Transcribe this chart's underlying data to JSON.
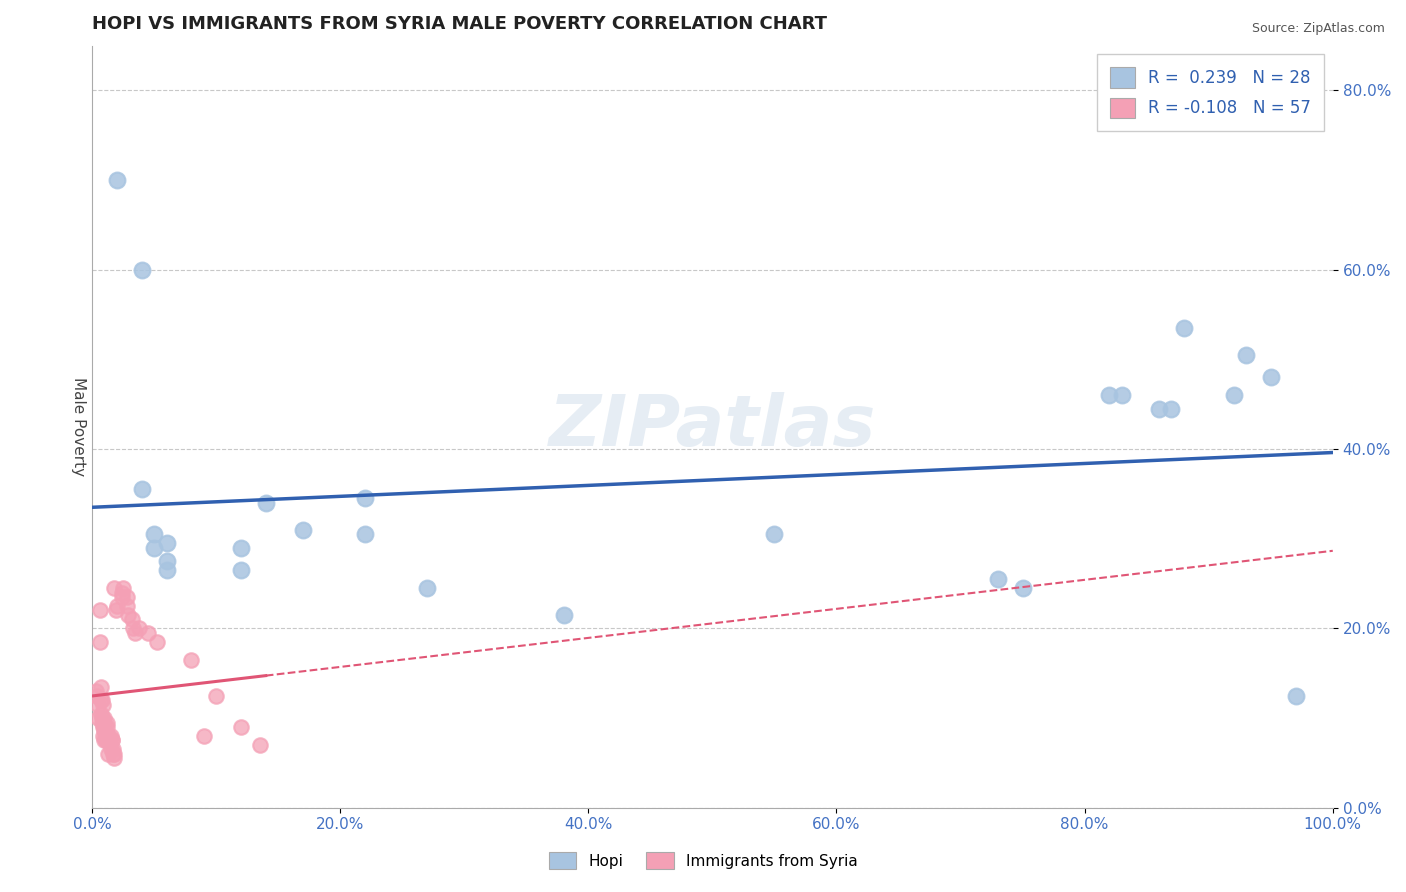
{
  "title": "HOPI VS IMMIGRANTS FROM SYRIA MALE POVERTY CORRELATION CHART",
  "source": "Source: ZipAtlas.com",
  "tick_color": "#4472c4",
  "ylabel": "Male Poverty",
  "xlim": [
    0.0,
    1.0
  ],
  "ylim": [
    0.0,
    0.85
  ],
  "yticks": [
    0.0,
    0.2,
    0.4,
    0.6,
    0.8
  ],
  "xticks": [
    0.0,
    0.2,
    0.4,
    0.6,
    0.8,
    1.0
  ],
  "ytick_labels": [
    "0.0%",
    "20.0%",
    "40.0%",
    "60.0%",
    "80.0%"
  ],
  "xtick_labels": [
    "0.0%",
    "20.0%",
    "40.0%",
    "60.0%",
    "80.0%",
    "100.0%"
  ],
  "legend_r_hopi": "R =  0.239",
  "legend_n_hopi": "N = 28",
  "legend_r_syria": "R = -0.108",
  "legend_n_syria": "N = 57",
  "hopi_color": "#a8c4e0",
  "syria_color": "#f4a0b5",
  "hopi_line_color": "#3060b0",
  "syria_line_color": "#e05575",
  "hopi_scatter": [
    [
      0.02,
      0.7
    ],
    [
      0.04,
      0.6
    ],
    [
      0.04,
      0.355
    ],
    [
      0.05,
      0.305
    ],
    [
      0.05,
      0.29
    ],
    [
      0.06,
      0.295
    ],
    [
      0.06,
      0.275
    ],
    [
      0.06,
      0.265
    ],
    [
      0.12,
      0.29
    ],
    [
      0.12,
      0.265
    ],
    [
      0.14,
      0.34
    ],
    [
      0.17,
      0.31
    ],
    [
      0.22,
      0.345
    ],
    [
      0.22,
      0.305
    ],
    [
      0.27,
      0.245
    ],
    [
      0.38,
      0.215
    ],
    [
      0.55,
      0.305
    ],
    [
      0.73,
      0.255
    ],
    [
      0.75,
      0.245
    ],
    [
      0.82,
      0.46
    ],
    [
      0.83,
      0.46
    ],
    [
      0.86,
      0.445
    ],
    [
      0.87,
      0.445
    ],
    [
      0.88,
      0.535
    ],
    [
      0.92,
      0.46
    ],
    [
      0.93,
      0.505
    ],
    [
      0.95,
      0.48
    ],
    [
      0.97,
      0.125
    ]
  ],
  "syria_scatter": [
    [
      0.003,
      0.13
    ],
    [
      0.004,
      0.125
    ],
    [
      0.005,
      0.115
    ],
    [
      0.005,
      0.1
    ],
    [
      0.006,
      0.22
    ],
    [
      0.006,
      0.185
    ],
    [
      0.007,
      0.135
    ],
    [
      0.007,
      0.12
    ],
    [
      0.007,
      0.105
    ],
    [
      0.008,
      0.12
    ],
    [
      0.008,
      0.1
    ],
    [
      0.008,
      0.095
    ],
    [
      0.009,
      0.115
    ],
    [
      0.009,
      0.09
    ],
    [
      0.009,
      0.08
    ],
    [
      0.01,
      0.09
    ],
    [
      0.01,
      0.075
    ],
    [
      0.01,
      0.1
    ],
    [
      0.01,
      0.095
    ],
    [
      0.01,
      0.085
    ],
    [
      0.011,
      0.08
    ],
    [
      0.011,
      0.075
    ],
    [
      0.011,
      0.075
    ],
    [
      0.012,
      0.095
    ],
    [
      0.012,
      0.09
    ],
    [
      0.013,
      0.08
    ],
    [
      0.013,
      0.06
    ],
    [
      0.013,
      0.08
    ],
    [
      0.014,
      0.075
    ],
    [
      0.015,
      0.08
    ],
    [
      0.015,
      0.065
    ],
    [
      0.016,
      0.075
    ],
    [
      0.016,
      0.075
    ],
    [
      0.017,
      0.065
    ],
    [
      0.017,
      0.06
    ],
    [
      0.018,
      0.06
    ],
    [
      0.018,
      0.055
    ],
    [
      0.018,
      0.245
    ],
    [
      0.019,
      0.22
    ],
    [
      0.02,
      0.225
    ],
    [
      0.024,
      0.24
    ],
    [
      0.024,
      0.235
    ],
    [
      0.025,
      0.245
    ],
    [
      0.028,
      0.235
    ],
    [
      0.028,
      0.225
    ],
    [
      0.029,
      0.215
    ],
    [
      0.032,
      0.21
    ],
    [
      0.033,
      0.2
    ],
    [
      0.035,
      0.195
    ],
    [
      0.038,
      0.2
    ],
    [
      0.045,
      0.195
    ],
    [
      0.052,
      0.185
    ],
    [
      0.08,
      0.165
    ],
    [
      0.1,
      0.125
    ],
    [
      0.12,
      0.09
    ],
    [
      0.135,
      0.07
    ],
    [
      0.09,
      0.08
    ]
  ],
  "background_color": "#ffffff",
  "grid_color": "#c8c8c8",
  "watermark": "ZIPatlas",
  "title_fontsize": 13,
  "axis_label_fontsize": 11,
  "tick_fontsize": 11
}
